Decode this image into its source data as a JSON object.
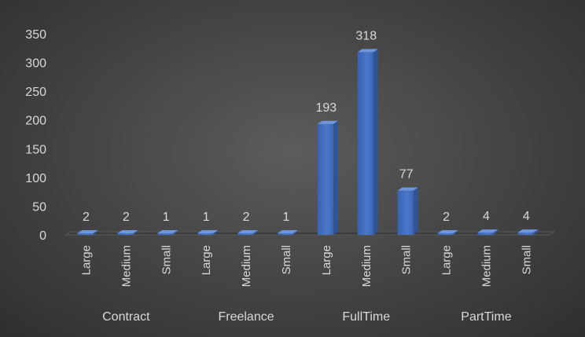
{
  "chart_data": {
    "type": "bar",
    "title": "",
    "xlabel": "",
    "ylabel": "",
    "ylim": [
      0,
      350
    ],
    "yticks": [
      0,
      50,
      100,
      150,
      200,
      250,
      300,
      350
    ],
    "grid": false,
    "groups": [
      {
        "name": "Contract",
        "categories": [
          "Large",
          "Medium",
          "Small"
        ],
        "values": [
          2,
          2,
          1
        ]
      },
      {
        "name": "Freelance",
        "categories": [
          "Large",
          "Medium",
          "Small"
        ],
        "values": [
          1,
          2,
          1
        ]
      },
      {
        "name": "FullTime",
        "categories": [
          "Large",
          "Medium",
          "Small"
        ],
        "values": [
          193,
          318,
          77
        ]
      },
      {
        "name": "PartTime",
        "categories": [
          "Large",
          "Medium",
          "Small"
        ],
        "values": [
          2,
          4,
          4
        ]
      }
    ],
    "bar_color": "#4472c4"
  }
}
